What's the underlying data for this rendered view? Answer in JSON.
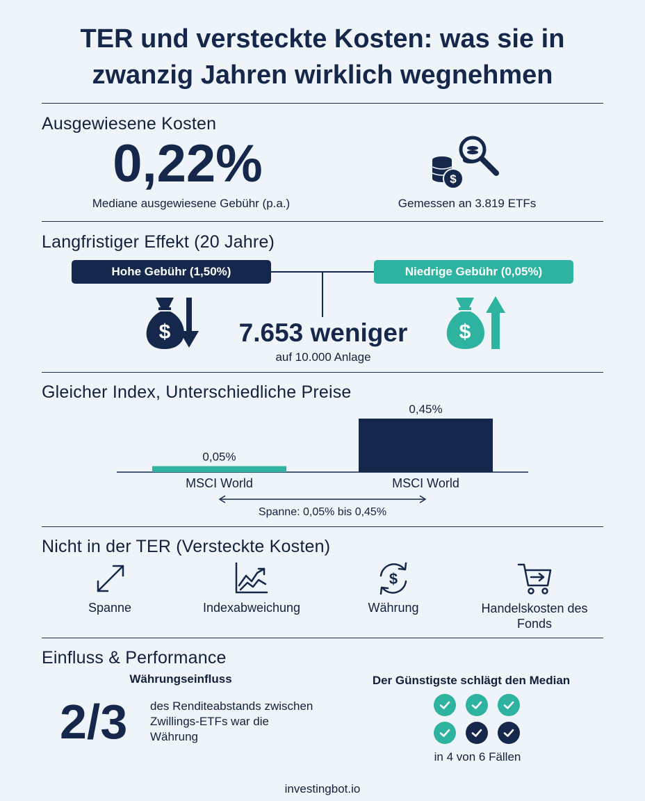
{
  "title": "TER und versteckte Kosten: was sie in zwanzig Jahren wirklich wegnehmen",
  "colors": {
    "navy": "#15284b",
    "teal": "#2db3a0",
    "background": "#eff4f8"
  },
  "section1": {
    "heading": "Ausgewiesene Kosten",
    "big_value": "0,22%",
    "big_caption": "Mediane ausgewiesene Gebühr (p.a.)",
    "icon": "coins-magnifier-icon",
    "right_caption": "Gemessen an 3.819 ETFs"
  },
  "section2": {
    "heading": "Langfristiger Effekt (20 Jahre)",
    "high_fee_label": "Hohe Gebühr (1,50%)",
    "low_fee_label": "Niedrige Gebühr (0,05%)",
    "difference": "7.653 weniger",
    "difference_caption": "auf 10.000 Anlage",
    "left_icon": "money-bag-down-icon",
    "right_icon": "money-bag-up-icon"
  },
  "section3": {
    "heading": "Gleicher Index, Unterschiedliche Preise",
    "range_label": "Spanne: 0,05% bis 0,45%"
  },
  "chart_data": {
    "type": "bar",
    "categories": [
      "MSCI World",
      "MSCI World"
    ],
    "values": [
      0.05,
      0.45
    ],
    "value_labels": [
      "0,05%",
      "0,45%"
    ],
    "colors": [
      "#2db3a0",
      "#15284b"
    ],
    "ylim": [
      0,
      0.45
    ],
    "title": "",
    "xlabel": "",
    "ylabel": ""
  },
  "section4": {
    "heading": "Nicht in der TER (Versteckte Kosten)",
    "items": [
      {
        "label": "Spanne",
        "icon": "diagonal-arrows-icon"
      },
      {
        "label": "Indexabweichung",
        "icon": "trend-chart-icon"
      },
      {
        "label": "Währung",
        "icon": "currency-exchange-icon"
      },
      {
        "label": "Handelskosten des Fonds",
        "icon": "shopping-cart-icon"
      }
    ]
  },
  "section5": {
    "heading": "Einfluss & Performance",
    "left_subheading": "Währungseinfluss",
    "fraction": "2/3",
    "fraction_caption": "des Renditeabstands zwischen Zwillings-ETFs war die Währung",
    "right_subheading": "Der Günstigste schlägt den Median",
    "wins": 4,
    "total": 6,
    "checks_caption": "in 4 von 6 Fällen"
  },
  "footer": "investingbot.io"
}
